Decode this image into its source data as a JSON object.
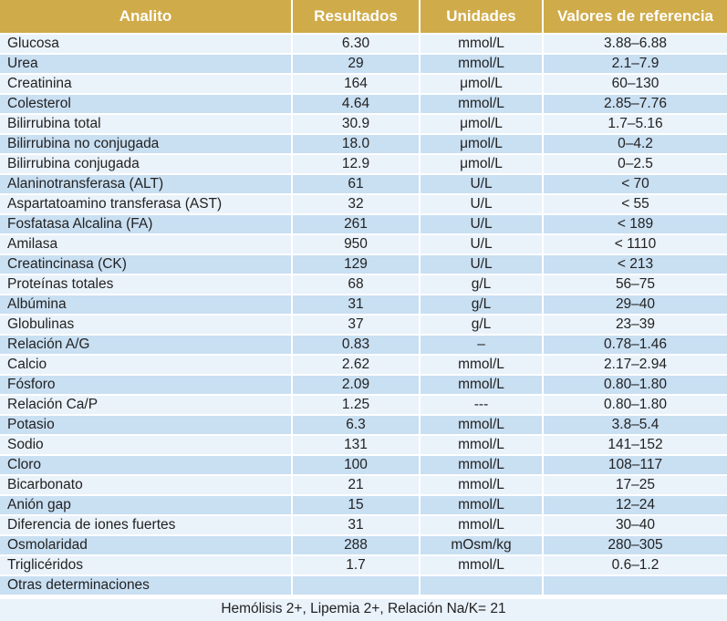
{
  "headers": {
    "analyte": "Analito",
    "result": "Resultados",
    "units": "Unidades",
    "reference": "Valores de referencia"
  },
  "rows": [
    {
      "analyte": "Glucosa",
      "result": "6.30",
      "units": "mmol/L",
      "reference": "3.88–6.88"
    },
    {
      "analyte": "Urea",
      "result": "29",
      "units": "mmol/L",
      "reference": "2.1–7.9"
    },
    {
      "analyte": "Creatinina",
      "result": "164",
      "units": "μmol/L",
      "reference": "60–130"
    },
    {
      "analyte": "Colesterol",
      "result": "4.64",
      "units": "mmol/L",
      "reference": "2.85–7.76"
    },
    {
      "analyte": "Bilirrubina total",
      "result": "30.9",
      "units": "μmol/L",
      "reference": "1.7–5.16"
    },
    {
      "analyte": "Bilirrubina no conjugada",
      "result": "18.0",
      "units": "μmol/L",
      "reference": "0–4.2"
    },
    {
      "analyte": "Bilirrubina conjugada",
      "result": "12.9",
      "units": "μmol/L",
      "reference": "0–2.5"
    },
    {
      "analyte": "Alaninotransferasa (ALT)",
      "result": "61",
      "units": "U/L",
      "reference": "< 70"
    },
    {
      "analyte": "Aspartatoamino transferasa (AST)",
      "result": "32",
      "units": "U/L",
      "reference": "< 55"
    },
    {
      "analyte": "Fosfatasa Alcalina (FA)",
      "result": "261",
      "units": "U/L",
      "reference": "< 189"
    },
    {
      "analyte": "Amilasa",
      "result": "950",
      "units": "U/L",
      "reference": "< 1110"
    },
    {
      "analyte": "Creatincinasa (CK)",
      "result": "129",
      "units": "U/L",
      "reference": "< 213"
    },
    {
      "analyte": "Proteínas totales",
      "result": "68",
      "units": "g/L",
      "reference": "56–75"
    },
    {
      "analyte": "Albúmina",
      "result": "31",
      "units": "g/L",
      "reference": "29–40"
    },
    {
      "analyte": "Globulinas",
      "result": "37",
      "units": "g/L",
      "reference": "23–39"
    },
    {
      "analyte": "Relación A/G",
      "result": "0.83",
      "units": "–",
      "reference": "0.78–1.46"
    },
    {
      "analyte": "Calcio",
      "result": "2.62",
      "units": "mmol/L",
      "reference": "2.17–2.94"
    },
    {
      "analyte": "Fósforo",
      "result": "2.09",
      "units": "mmol/L",
      "reference": "0.80–1.80"
    },
    {
      "analyte": "Relación Ca/P",
      "result": "1.25",
      "units": "---",
      "reference": "0.80–1.80"
    },
    {
      "analyte": "Potasio",
      "result": "6.3",
      "units": "mmol/L",
      "reference": "3.8–5.4"
    },
    {
      "analyte": "Sodio",
      "result": "131",
      "units": "mmol/L",
      "reference": "141–152"
    },
    {
      "analyte": "Cloro",
      "result": "100",
      "units": "mmol/L",
      "reference": "108–117"
    },
    {
      "analyte": "Bicarbonato",
      "result": "21",
      "units": "mmol/L",
      "reference": "17–25"
    },
    {
      "analyte": "Anión gap",
      "result": "15",
      "units": "mmol/L",
      "reference": "12–24"
    },
    {
      "analyte": "Diferencia de iones fuertes",
      "result": "31",
      "units": "mmol/L",
      "reference": "30–40"
    },
    {
      "analyte": "Osmolaridad",
      "result": "288",
      "units": "mOsm/kg",
      "reference": "280–305"
    },
    {
      "analyte": "Triglicéridos",
      "result": "1.7",
      "units": "mmol/L",
      "reference": "0.6–1.2"
    },
    {
      "analyte": "Otras determinaciones",
      "result": "",
      "units": "",
      "reference": ""
    }
  ],
  "footer": "Hemólisis 2+, Lipemia 2+, Relación Na/K= 21",
  "colors": {
    "header_bg": "#cfab4a",
    "row_light": "#eaf2fa",
    "row_dark": "#c9dff2"
  }
}
